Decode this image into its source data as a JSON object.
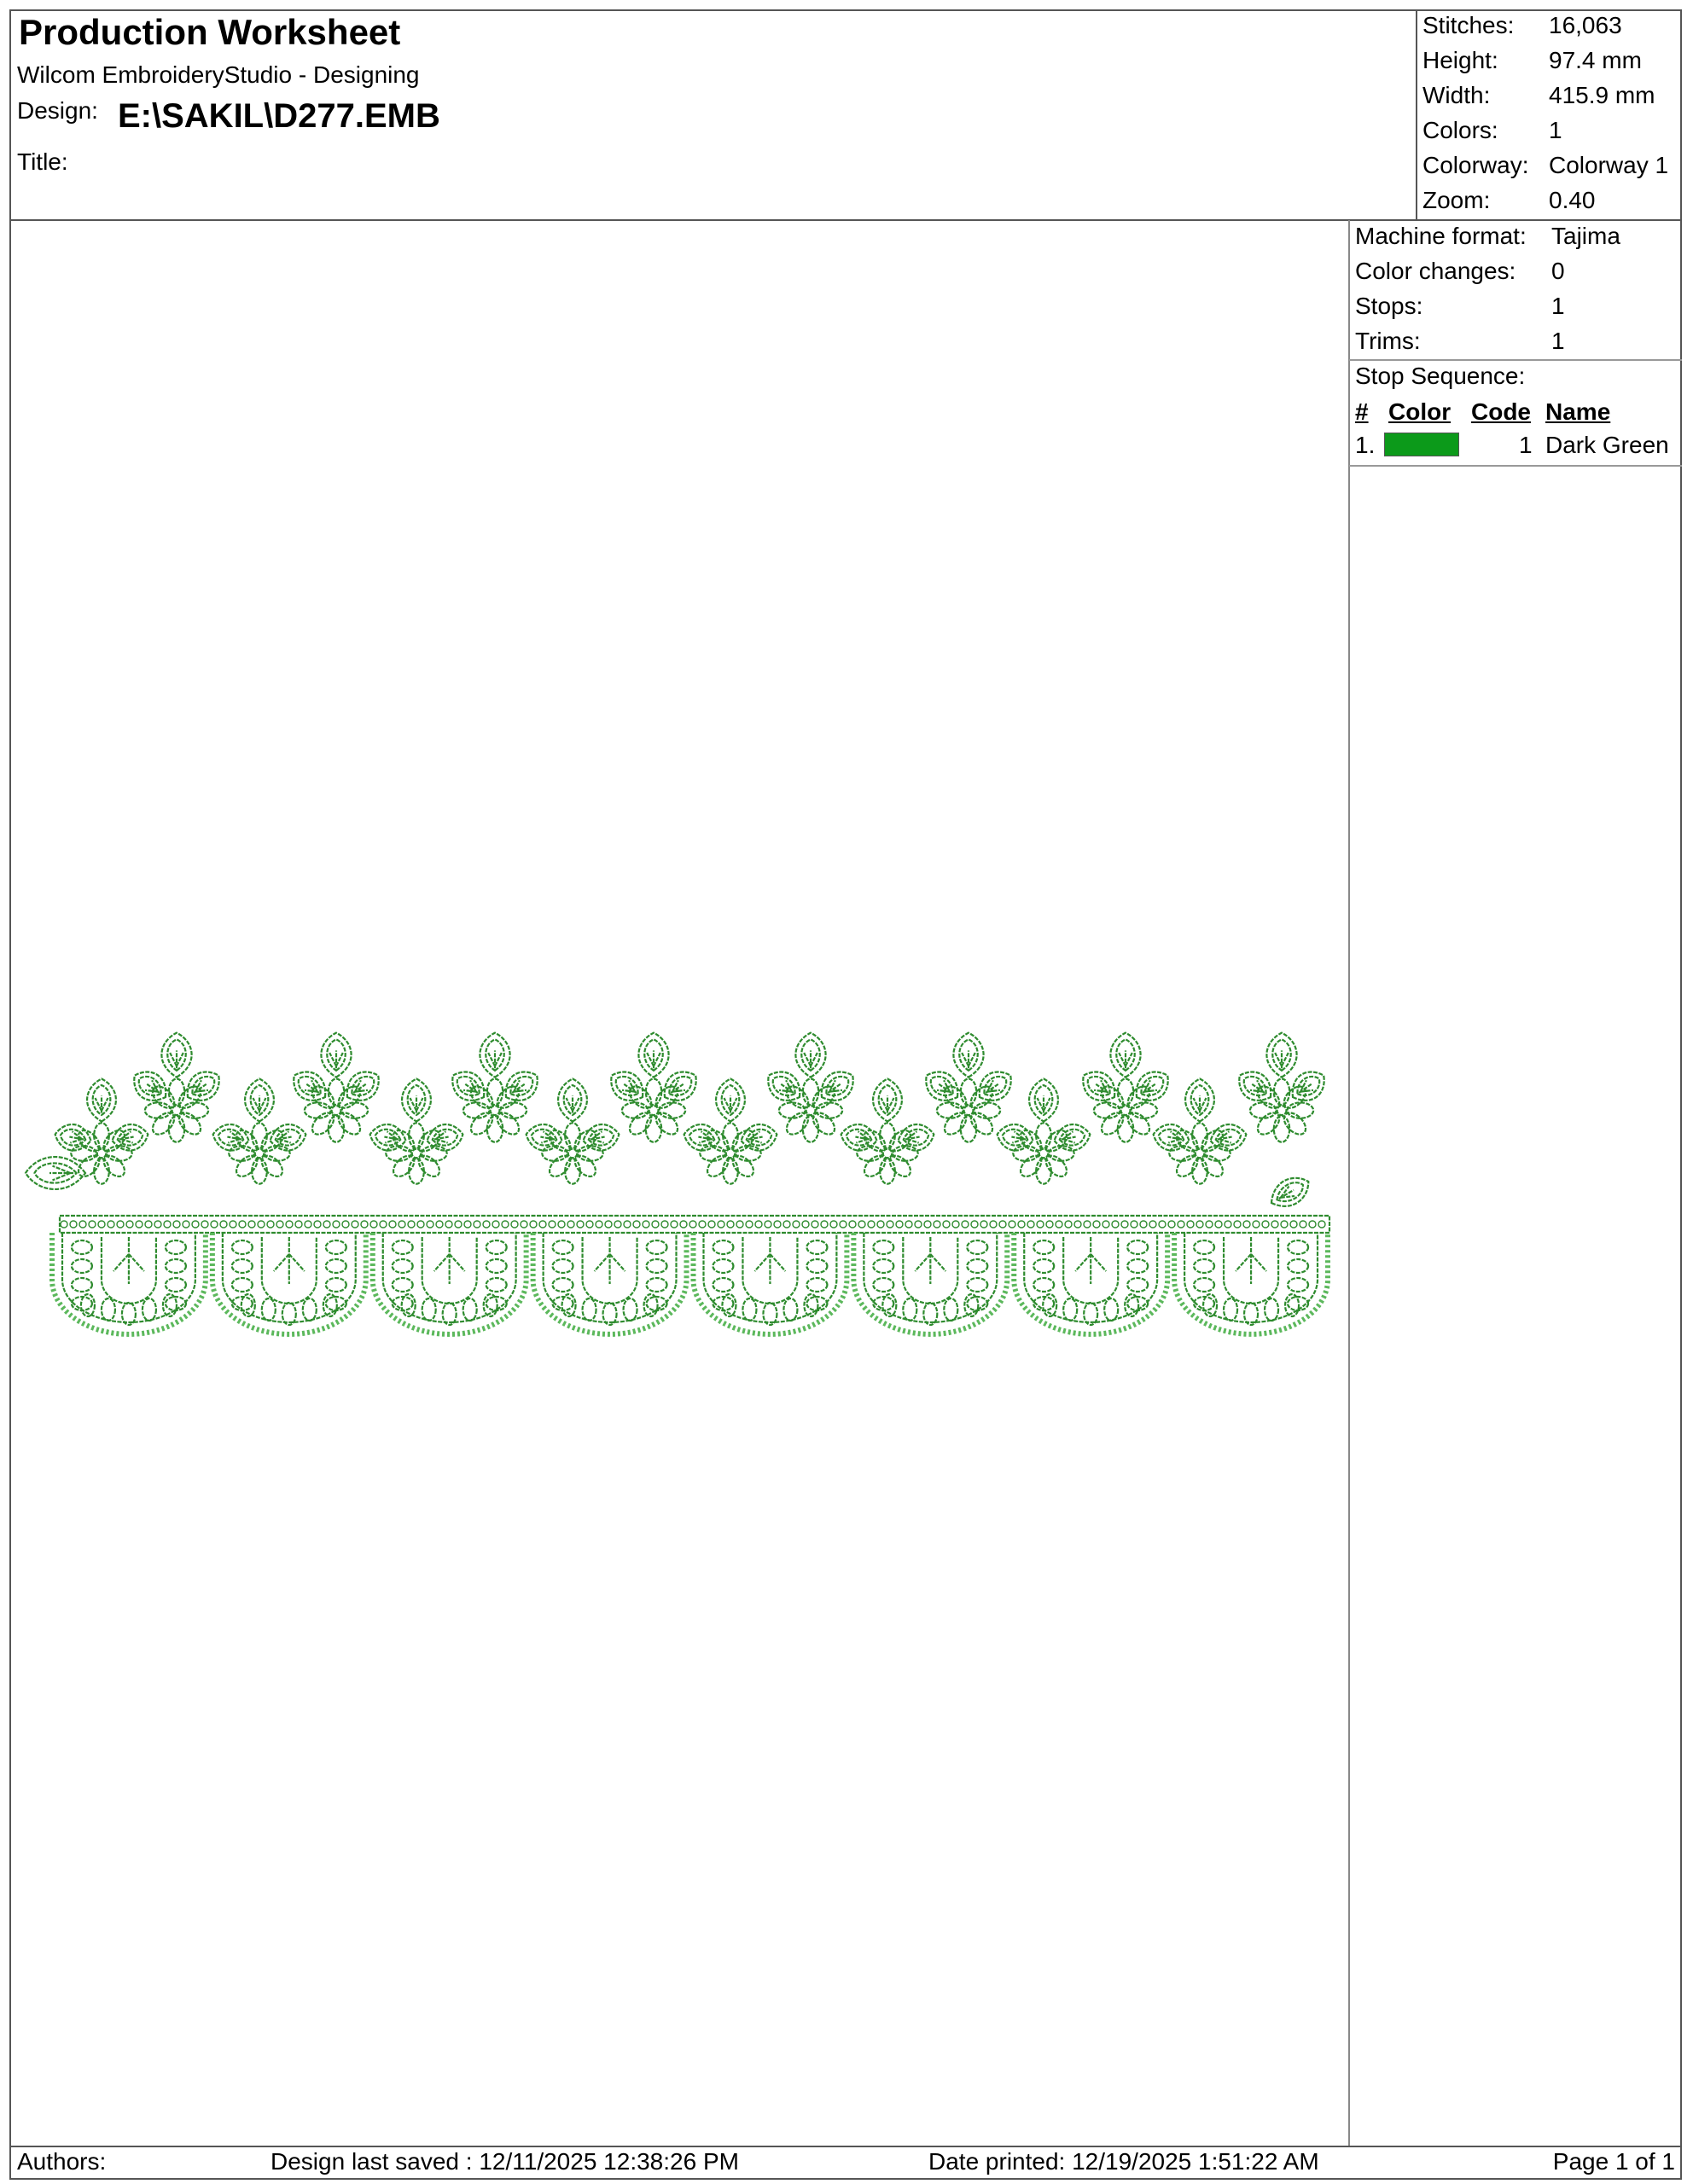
{
  "header": {
    "title": "Production Worksheet",
    "subtitle": "Wilcom EmbroideryStudio - Designing",
    "design_label": "Design:",
    "design_value": "E:\\SAKIL\\D277.EMB",
    "title_label": "Title:",
    "title_value": ""
  },
  "stats": [
    {
      "label": "Stitches:",
      "value": "16,063"
    },
    {
      "label": "Height:",
      "value": "97.4 mm"
    },
    {
      "label": "Width:",
      "value": "415.9 mm"
    },
    {
      "label": "Colors:",
      "value": "1"
    },
    {
      "label": "Colorway:",
      "value": "Colorway 1"
    },
    {
      "label": "Zoom:",
      "value": "0.40"
    }
  ],
  "machine": [
    {
      "label": "Machine format:",
      "value": "Tajima"
    },
    {
      "label": "Color changes:",
      "value": "0"
    },
    {
      "label": "Stops:",
      "value": "1"
    },
    {
      "label": "Trims:",
      "value": "1"
    }
  ],
  "stop_sequence": {
    "label": "Stop Sequence:",
    "columns": [
      "#",
      "Color",
      "Code",
      "Name"
    ],
    "rows": [
      {
        "num": "1.",
        "color": "#0c9a1a",
        "code": "1",
        "name": "Dark Green"
      }
    ]
  },
  "design_preview": {
    "thread_color": "#2e8b2e",
    "motif": "floral scalloped border"
  },
  "footer": {
    "authors": "Authors:",
    "saved": "Design last saved : 12/11/2025 12:38:26 PM",
    "printed": "Date printed: 12/19/2025 1:51:22 AM",
    "page": "Page 1 of 1"
  }
}
